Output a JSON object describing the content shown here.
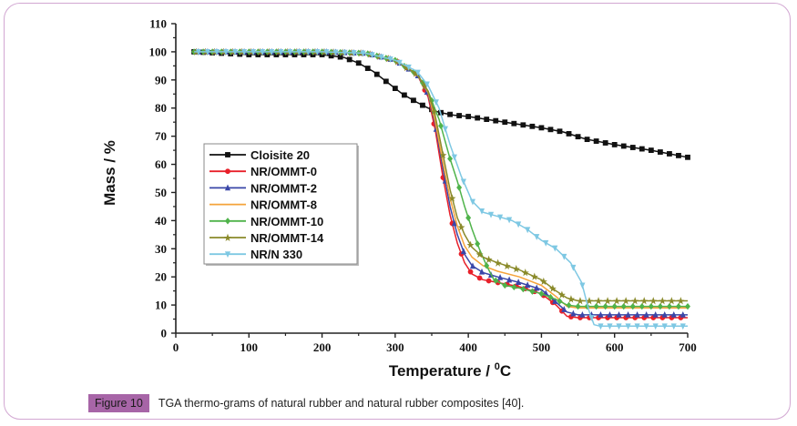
{
  "caption": {
    "label": "Figure 10",
    "text": "TGA thermo-grams of natural rubber and natural rubber composites [40]."
  },
  "colors": {
    "frame": "#d2a7d2",
    "caption_label_bg": "#a765a7"
  },
  "chart_data": {
    "type": "line",
    "title": "",
    "xlabel": "Temperature / ",
    "xlabel_unit": "0",
    "xlabel_unit_suffix": "C",
    "ylabel": "Mass / %",
    "xlim": [
      0,
      700
    ],
    "ylim": [
      0,
      110
    ],
    "xticks": [
      0,
      100,
      200,
      300,
      400,
      500,
      600,
      700
    ],
    "yticks": [
      0,
      10,
      20,
      30,
      40,
      50,
      60,
      70,
      80,
      90,
      100,
      110
    ],
    "grid": false,
    "legend_position": "center-left",
    "series": [
      {
        "name": "Cloisite 20",
        "color": "#111111",
        "marker": "square",
        "x": [
          25,
          100,
          200,
          230,
          250,
          270,
          290,
          310,
          330,
          345,
          360,
          380,
          400,
          450,
          500,
          530,
          560,
          600,
          650,
          700
        ],
        "y": [
          100,
          99,
          99,
          98,
          96,
          93,
          89,
          85,
          82,
          80,
          78.5,
          77.5,
          77,
          75,
          73,
          71.5,
          69,
          67,
          65,
          62.5
        ]
      },
      {
        "name": "NR/OMMT-0",
        "color": "#e8202a",
        "marker": "circle",
        "x": [
          25,
          100,
          200,
          260,
          300,
          330,
          345,
          355,
          365,
          375,
          385,
          395,
          405,
          420,
          440,
          470,
          500,
          520,
          535,
          550,
          600,
          700
        ],
        "y": [
          100,
          100,
          100,
          99.5,
          97,
          92,
          84,
          72,
          56,
          42,
          32,
          25,
          21,
          19,
          18,
          16.5,
          14,
          10,
          6,
          5.5,
          5.5,
          5.5
        ]
      },
      {
        "name": "NR/OMMT-2",
        "color": "#3a47a8",
        "marker": "triangle",
        "x": [
          25,
          100,
          200,
          260,
          300,
          330,
          345,
          355,
          365,
          375,
          385,
          395,
          405,
          420,
          440,
          470,
          500,
          520,
          535,
          550,
          600,
          700
        ],
        "y": [
          100,
          100,
          100,
          99.5,
          97,
          92,
          85,
          74,
          59,
          45,
          35,
          28,
          24,
          21.5,
          20,
          18,
          15.5,
          11,
          7.5,
          6.5,
          6.5,
          6.5
        ]
      },
      {
        "name": "NR/OMMT-8",
        "color": "#f5a33a",
        "marker": "none",
        "x": [
          25,
          100,
          200,
          260,
          300,
          330,
          345,
          355,
          365,
          375,
          385,
          395,
          405,
          420,
          440,
          470,
          500,
          520,
          535,
          550,
          600,
          700
        ],
        "y": [
          100,
          100,
          100,
          99.5,
          97,
          92,
          85.5,
          75,
          61,
          48,
          38,
          31,
          27,
          24,
          22,
          20,
          17,
          13,
          9.5,
          9,
          9,
          9
        ]
      },
      {
        "name": "NR/OMMT-10",
        "color": "#4fb34a",
        "marker": "diamond",
        "x": [
          25,
          100,
          200,
          260,
          300,
          330,
          345,
          360,
          375,
          385,
          395,
          405,
          415,
          425,
          435,
          450,
          470,
          500,
          520,
          535,
          550,
          600,
          700
        ],
        "y": [
          100,
          100,
          100,
          99.5,
          97,
          92,
          86,
          76,
          62,
          54,
          45,
          37,
          30,
          24,
          19,
          17,
          16,
          14,
          12,
          10,
          9.5,
          9.5,
          9.5
        ]
      },
      {
        "name": "NR/OMMT-14",
        "color": "#8a8a2a",
        "marker": "star",
        "x": [
          25,
          100,
          200,
          260,
          300,
          330,
          345,
          355,
          365,
          375,
          385,
          395,
          405,
          420,
          440,
          470,
          500,
          520,
          535,
          550,
          600,
          700
        ],
        "y": [
          100,
          100,
          100,
          99.5,
          97,
          92,
          86,
          77,
          64,
          51,
          41,
          35,
          30.5,
          27,
          25,
          22.5,
          19,
          15,
          12.5,
          11.5,
          11.5,
          11.5
        ]
      },
      {
        "name": "NR/N 330",
        "color": "#7ec8e3",
        "marker": "inverted-triangle",
        "x": [
          25,
          100,
          200,
          260,
          300,
          330,
          345,
          360,
          375,
          390,
          405,
          420,
          440,
          460,
          480,
          500,
          520,
          540,
          555,
          565,
          572,
          580,
          600,
          700
        ],
        "y": [
          100,
          100,
          100,
          99.5,
          97,
          93,
          88,
          80,
          67,
          56,
          47,
          43,
          41.5,
          40,
          37,
          33,
          30,
          25,
          18,
          8,
          3,
          2.5,
          2.5,
          2.5
        ]
      }
    ]
  }
}
